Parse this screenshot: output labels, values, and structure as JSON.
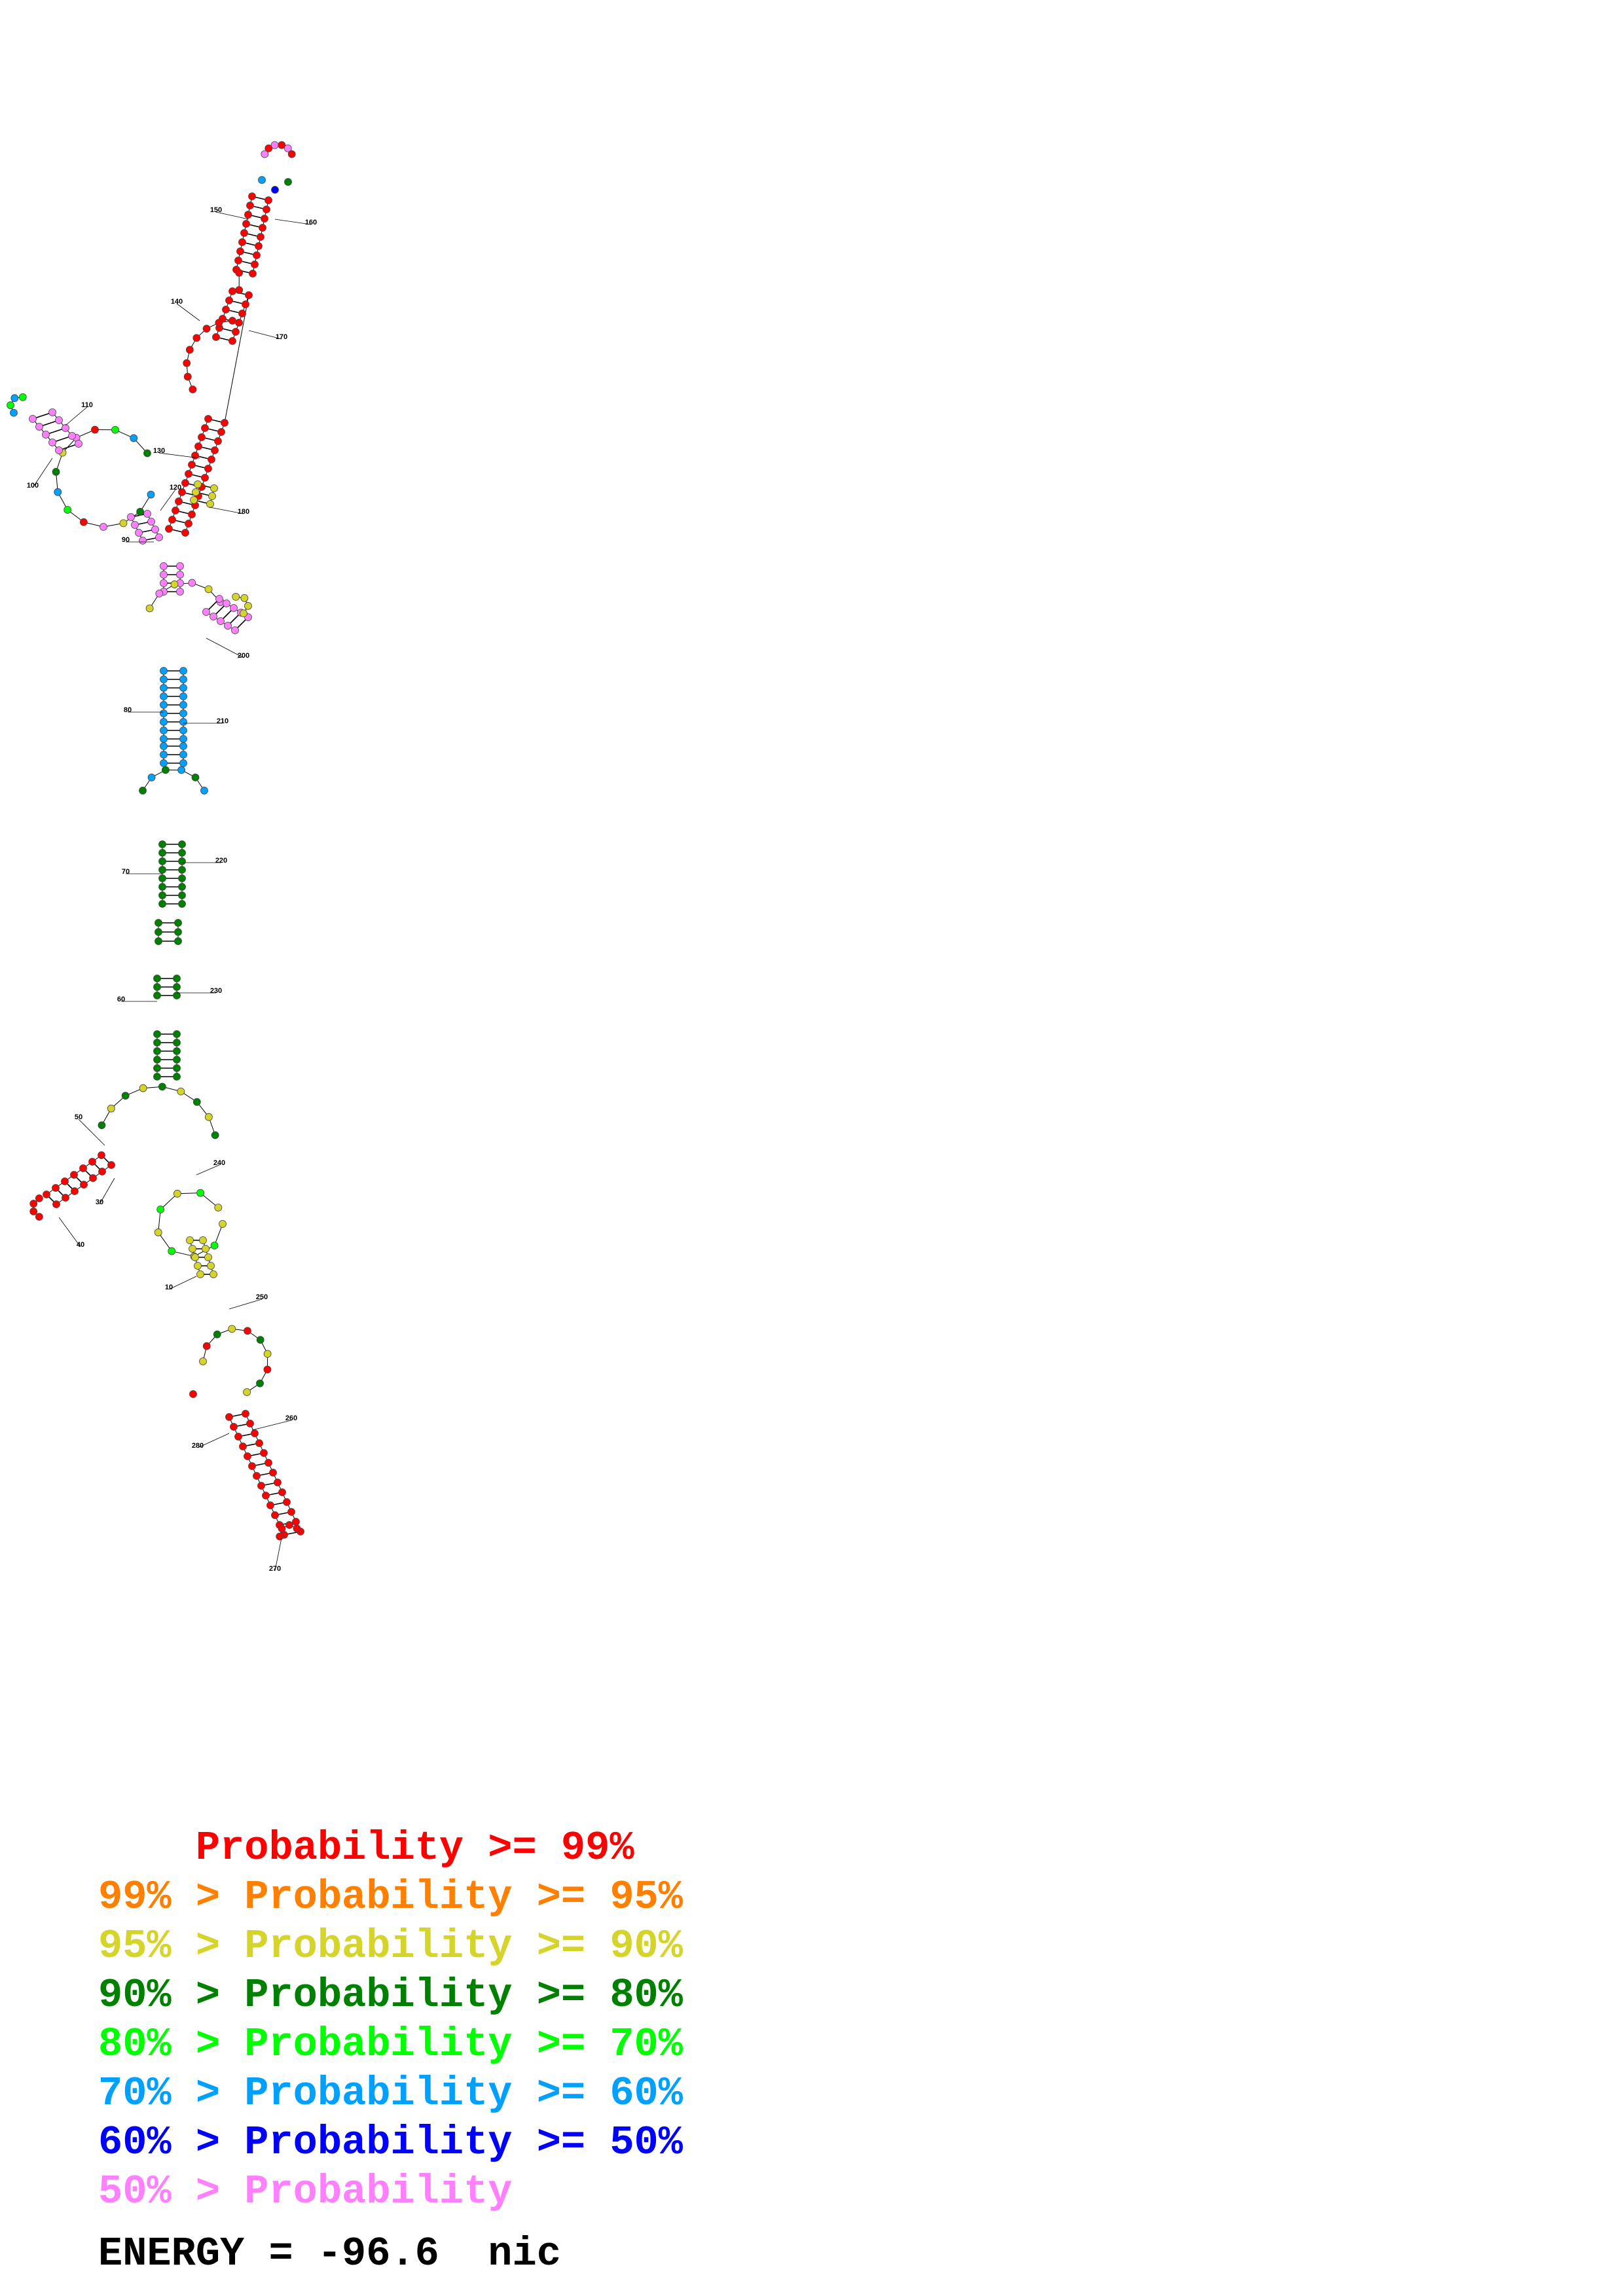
{
  "legend": [
    {
      "text": "    Probability >= 99%",
      "color": "#ff0000"
    },
    {
      "text": "99% > Probability >= 95%",
      "color": "#ff8000"
    },
    {
      "text": "95% > Probability >= 90%",
      "color": "#d4d42a"
    },
    {
      "text": "90% > Probability >= 80%",
      "color": "#008000"
    },
    {
      "text": "80% > Probability >= 70%",
      "color": "#00ff00"
    },
    {
      "text": "70% > Probability >= 60%",
      "color": "#00a0ff"
    },
    {
      "text": "60% > Probability >= 50%",
      "color": "#0000ff"
    },
    {
      "text": "50% > Probability",
      "color": "#ff80ff"
    }
  ],
  "energy": "ENERGY = -96.6  nic",
  "position_labels": [
    "10",
    "30",
    "40",
    "50",
    "60",
    "70",
    "80",
    "90",
    "100",
    "110",
    "120",
    "130",
    "140",
    "150",
    "160",
    "170",
    "180",
    "200",
    "210",
    "220",
    "230",
    "240",
    "250",
    "260",
    "270",
    "280"
  ],
  "colors": {
    "red": "#ff0000",
    "orange": "#ff8000",
    "yellow": "#d4d42a",
    "dkgreen": "#008000",
    "green": "#00ff00",
    "cyan": "#00a0ff",
    "blue": "#0000ff",
    "pink": "#ff80ff"
  }
}
